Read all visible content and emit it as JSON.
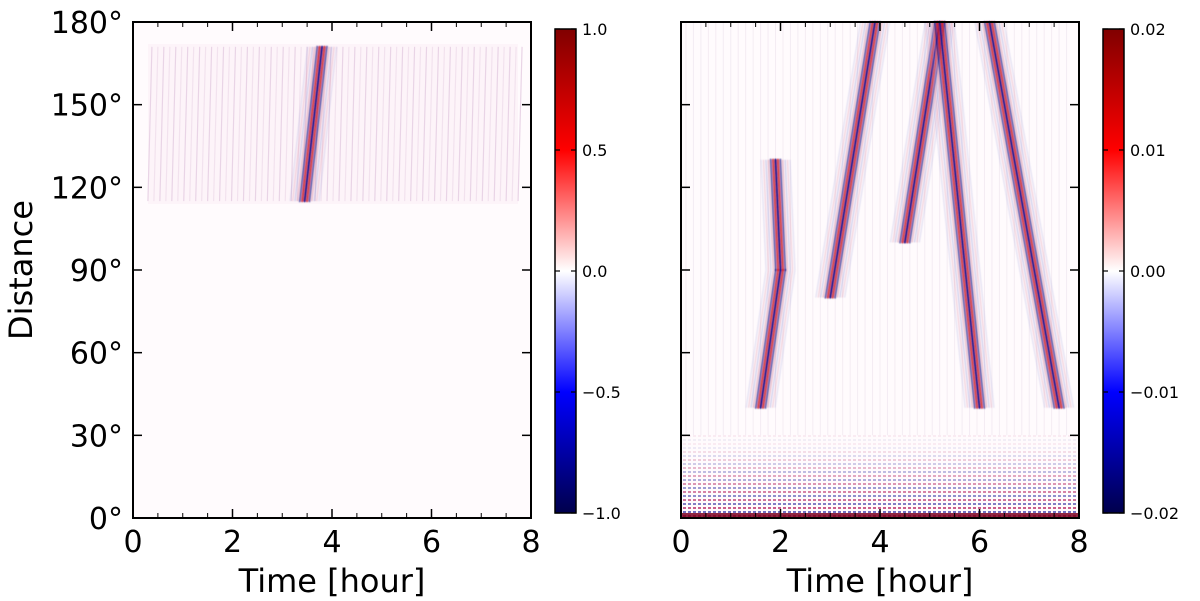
{
  "chart_data": [
    {
      "type": "heatmap",
      "panel": "left",
      "xlabel": "Time [hour]",
      "ylabel": "Distance",
      "xlim": [
        0,
        8
      ],
      "ylim": [
        0,
        180
      ],
      "xticks": [
        0,
        2,
        4,
        6,
        8
      ],
      "xtick_labels": [
        "0",
        "2",
        "4",
        "6",
        "8"
      ],
      "yticks": [
        0,
        30,
        60,
        90,
        120,
        150,
        180
      ],
      "ytick_labels": [
        "0°",
        "30°",
        "60°",
        "90°",
        "120°",
        "150°",
        "180°"
      ],
      "colormap": "seismic",
      "colorbar": {
        "range": [
          -1.0,
          1.0
        ],
        "ticks": [
          -1.0,
          -0.5,
          0.0,
          0.5,
          1.0
        ],
        "tick_labels": [
          "−1.0",
          "−0.5",
          "0.0",
          "0.5",
          "1.0"
        ],
        "colors": [
          "#00004c",
          "#0000ff",
          "#ffffff",
          "#ff0000",
          "#800000"
        ]
      },
      "features": [
        {
          "kind": "ridge",
          "from": {
            "t": 3.45,
            "d": 115
          },
          "to": {
            "t": 3.8,
            "d": 171
          }
        }
      ],
      "data_extent": {
        "t": [
          0.3,
          7.8
        ],
        "d": [
          115,
          171
        ]
      }
    },
    {
      "type": "heatmap",
      "panel": "right",
      "xlabel": "Time [hour]",
      "ylabel": "",
      "xlim": [
        0,
        8
      ],
      "ylim": [
        0,
        180
      ],
      "xticks": [
        0,
        2,
        4,
        6,
        8
      ],
      "xtick_labels": [
        "0",
        "2",
        "4",
        "6",
        "8"
      ],
      "yticks": [
        0,
        30,
        60,
        90,
        120,
        150,
        180
      ],
      "ytick_labels": [],
      "colormap": "seismic",
      "colorbar": {
        "range": [
          -0.02,
          0.02
        ],
        "ticks": [
          -0.02,
          -0.01,
          0.0,
          0.01,
          0.02
        ],
        "tick_labels": [
          "−0.02",
          "−0.01",
          "0.00",
          "0.01",
          "0.02"
        ],
        "colors": [
          "#00004c",
          "#0000ff",
          "#ffffff",
          "#ff0000",
          "#800000"
        ]
      },
      "features": [
        {
          "kind": "ridge",
          "from": {
            "t": 1.6,
            "d": 40
          },
          "to": {
            "t": 2.0,
            "d": 90
          }
        },
        {
          "kind": "ridge",
          "from": {
            "t": 2.0,
            "d": 90
          },
          "to": {
            "t": 1.9,
            "d": 130
          }
        },
        {
          "kind": "ridge",
          "from": {
            "t": 3.0,
            "d": 80
          },
          "to": {
            "t": 3.9,
            "d": 180
          }
        },
        {
          "kind": "ridge",
          "from": {
            "t": 4.5,
            "d": 100
          },
          "to": {
            "t": 5.2,
            "d": 180
          }
        },
        {
          "kind": "ridge",
          "from": {
            "t": 5.2,
            "d": 180
          },
          "to": {
            "t": 6.0,
            "d": 40
          }
        },
        {
          "kind": "ridge",
          "from": {
            "t": 6.2,
            "d": 180
          },
          "to": {
            "t": 7.6,
            "d": 40
          }
        },
        {
          "kind": "band",
          "d": [
            0,
            30
          ],
          "t": [
            0,
            8
          ]
        }
      ]
    }
  ]
}
